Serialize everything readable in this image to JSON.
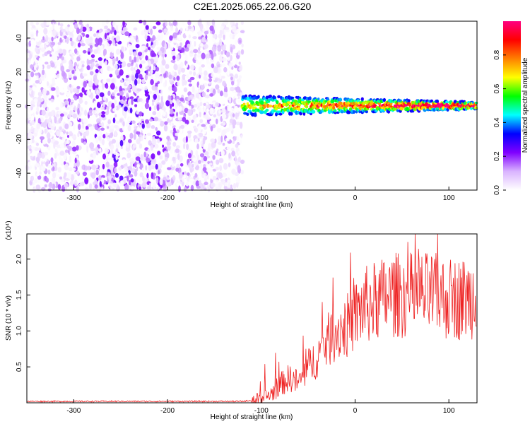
{
  "title": "C2E1.2025.065.22.06.G20",
  "chart_data": [
    {
      "type": "heatmap",
      "xlabel": "Height of straight line (km)",
      "ylabel": "Frequency (Hz)",
      "xlim": [
        -350,
        130
      ],
      "ylim": [
        -50,
        50
      ],
      "xticks": [
        -300,
        -200,
        -100,
        0,
        100
      ],
      "yticks": [
        -40,
        -20,
        0,
        20,
        40
      ],
      "colorbar": {
        "label": "Normalized spectral amplitude",
        "range": [
          0,
          1
        ],
        "ticks": [
          "0.0",
          "0.2",
          "0.4",
          "0.6",
          "0.8"
        ],
        "colors": [
          "#ffffff",
          "#d9b3ff",
          "#8000ff",
          "#0000ff",
          "#00ffff",
          "#00ff00",
          "#ffff00",
          "#ff8000",
          "#ff0000",
          "#ff0080"
        ]
      },
      "regions": [
        {
          "name": "scattered noise",
          "x_range": [
            -350,
            -120
          ],
          "freq_range": [
            -50,
            50
          ],
          "amplitude": [
            0.0,
            0.25
          ]
        },
        {
          "name": "signal band",
          "x_range": [
            -120,
            130
          ],
          "freq_center": 0,
          "half_width_hz": [
            6,
            2
          ],
          "amplitude": [
            0.4,
            0.95
          ]
        }
      ]
    },
    {
      "type": "line",
      "xlabel": "Height of straight line (km)",
      "ylabel": "SNR (10 * v/v)",
      "y_scale_label": "(x10⁴)",
      "xlim": [
        -350,
        130
      ],
      "ylim": [
        0,
        2.35
      ],
      "xticks": [
        -300,
        -200,
        -100,
        0,
        100
      ],
      "yticks": [
        "0.5",
        "1.0",
        "1.5",
        "2.0"
      ],
      "color": "#ee2222",
      "x": [
        -350,
        -120,
        -100,
        -90,
        -80,
        -70,
        -60,
        -50,
        -40,
        -30,
        -20,
        -10,
        0,
        10,
        20,
        30,
        40,
        60,
        80,
        100,
        120,
        130
      ],
      "y": [
        0.02,
        0.02,
        0.05,
        0.12,
        0.25,
        0.35,
        0.28,
        0.5,
        0.65,
        0.85,
        1.0,
        1.05,
        1.2,
        1.35,
        1.4,
        1.45,
        1.5,
        1.5,
        1.5,
        1.45,
        1.45,
        1.5
      ]
    }
  ]
}
